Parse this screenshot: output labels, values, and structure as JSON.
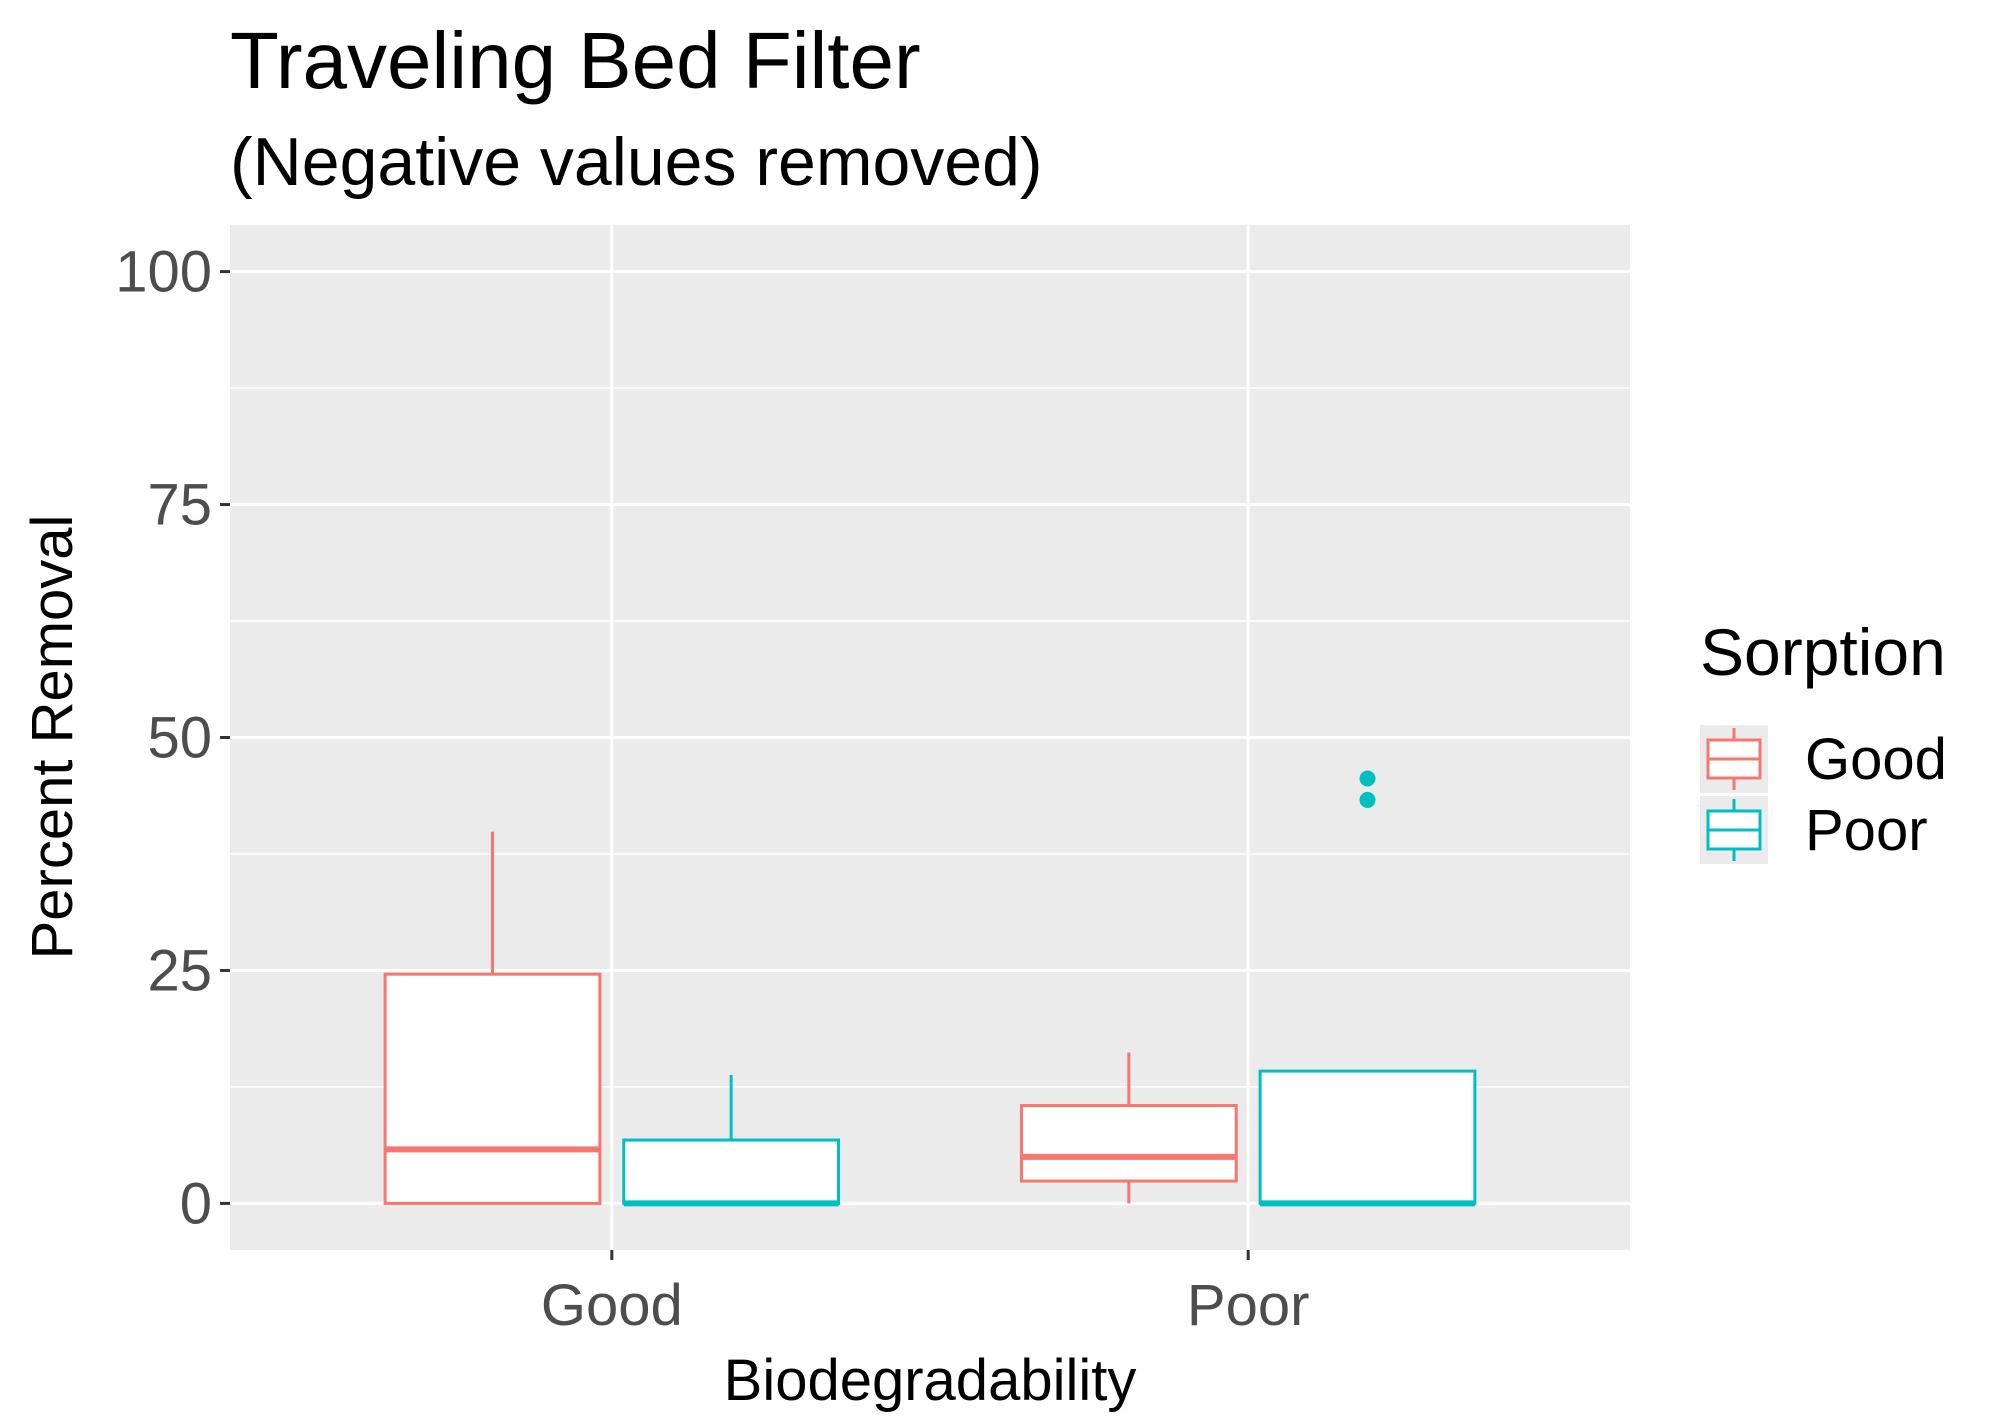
{
  "chart_data": {
    "type": "box",
    "title": "Traveling Bed Filter",
    "subtitle": "(Negative values removed)",
    "xlabel": "Biodegradability",
    "ylabel": "Percent Removal",
    "categories": [
      "Good",
      "Poor"
    ],
    "ylim": [
      -5,
      105
    ],
    "yticks": [
      0,
      25,
      50,
      75,
      100
    ],
    "ytick_labels": [
      "0",
      "25",
      "50",
      "75",
      "100"
    ],
    "grid": true,
    "legend": {
      "title": "Sorption",
      "position": "right",
      "entries": [
        "Good",
        "Poor"
      ]
    },
    "series": [
      {
        "name": "Good",
        "color": "#F8766D",
        "boxes": [
          {
            "category": "Good",
            "min": 0,
            "q1": 0,
            "median": 5.8,
            "q3": 24.6,
            "max": 39.9,
            "outliers": []
          },
          {
            "category": "Poor",
            "min": 0,
            "q1": 2.4,
            "median": 5.0,
            "q3": 10.5,
            "max": 16.2,
            "outliers": []
          }
        ]
      },
      {
        "name": "Poor",
        "color": "#00BFC4",
        "boxes": [
          {
            "category": "Good",
            "min": 0,
            "q1": 0,
            "median": 0,
            "q3": 6.8,
            "max": 13.8,
            "outliers": []
          },
          {
            "category": "Poor",
            "min": 0,
            "q1": 0,
            "median": 0,
            "q3": 14.2,
            "max": 14.2,
            "outliers": [
              43.3,
              45.6
            ]
          }
        ]
      }
    ]
  }
}
